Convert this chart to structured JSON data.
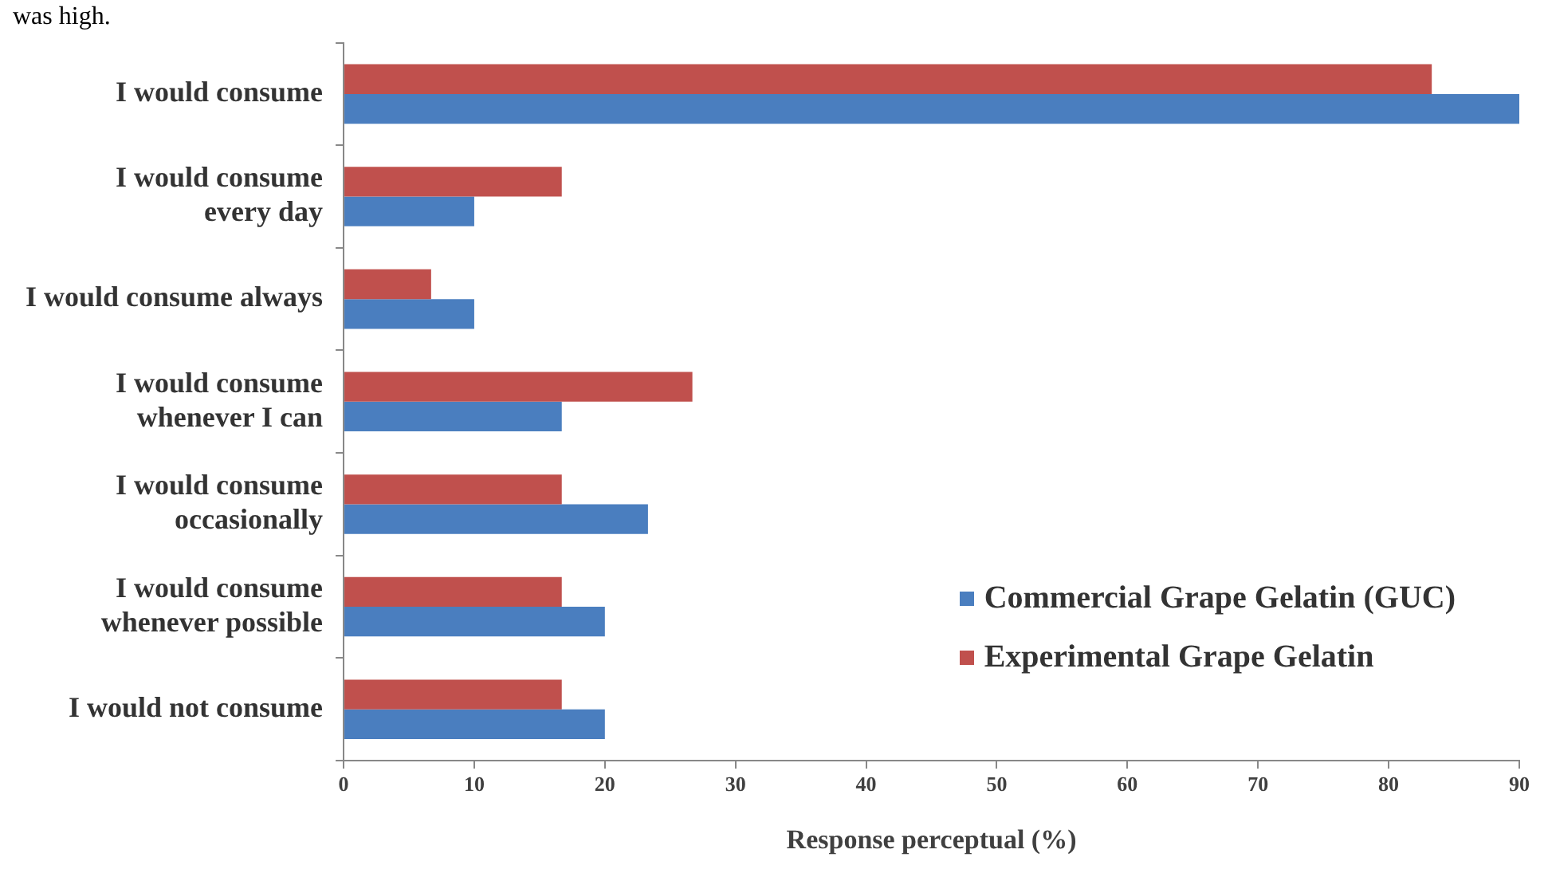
{
  "chart_data": {
    "type": "bar",
    "orientation": "horizontal",
    "xlabel": "Response perceptual (%)",
    "annotations": [
      "was high."
    ],
    "categories": [
      "I would consume",
      "I would consume\nevery day",
      "I would consume always",
      "I would consume\nwhenever I can",
      "I would consume\noccasionally",
      "I would consume\nwhenever possible",
      "I would not consume"
    ],
    "series": [
      {
        "name": "Commercial Grape Gelatin (GUC)",
        "color": "#4a7ebf",
        "values": [
          90,
          10,
          10,
          16.7,
          23.3,
          20,
          20
        ]
      },
      {
        "name": "Experimental Grape Gelatin",
        "color": "#c0504d",
        "values": [
          83.3,
          16.7,
          6.7,
          26.7,
          16.7,
          16.7,
          16.7
        ]
      }
    ],
    "xlim": [
      0,
      90
    ],
    "xticks": [
      0,
      10,
      20,
      30,
      40,
      50,
      60,
      70,
      80,
      90
    ],
    "grid": false,
    "legend": "bottom right"
  }
}
